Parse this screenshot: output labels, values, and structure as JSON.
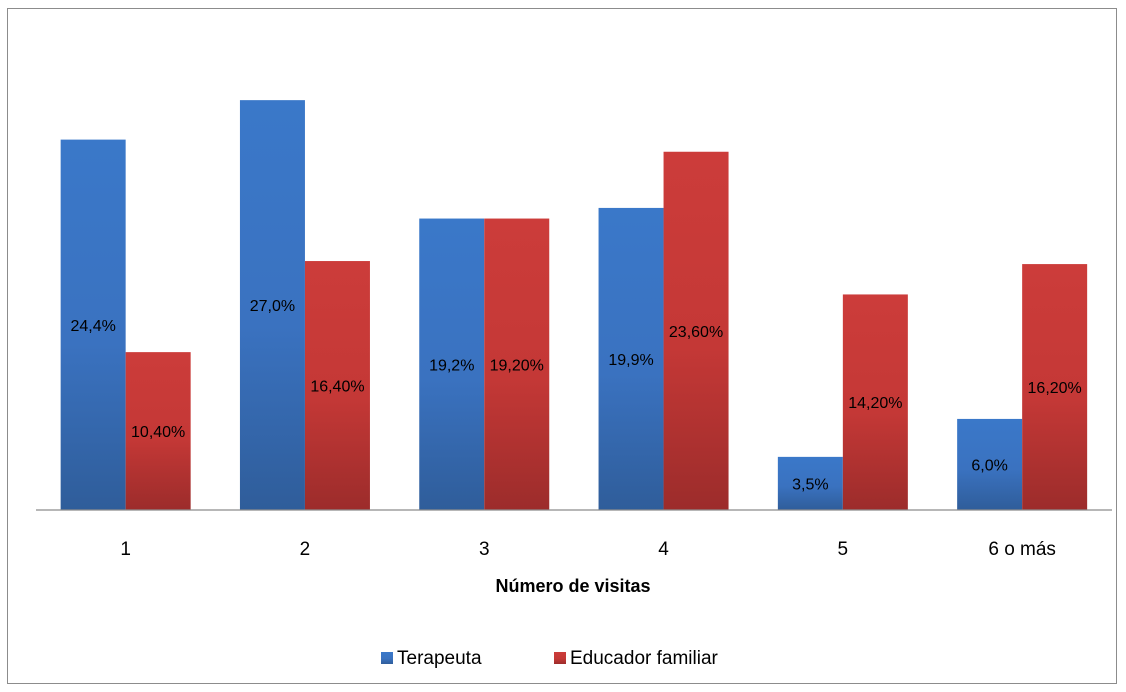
{
  "chart_data": {
    "type": "bar",
    "categories": [
      "1",
      "2",
      "3",
      "4",
      "5",
      "6 o más"
    ],
    "series": [
      {
        "name": "Terapeuta",
        "color": "#3a76c7",
        "values": [
          24.4,
          27.0,
          19.2,
          19.9,
          3.5,
          6.0
        ],
        "labels": [
          "24,4%",
          "27,0%",
          "19,2%",
          "19,9%",
          "3,5%",
          "6,0%"
        ]
      },
      {
        "name": "Educador familiar",
        "color": "#c83a38",
        "values": [
          10.4,
          16.4,
          19.2,
          23.6,
          14.2,
          16.2
        ],
        "labels": [
          "10,40%",
          "16,40%",
          "19,20%",
          "23,60%",
          "14,20%",
          "16,20%"
        ]
      }
    ],
    "title": "",
    "xlabel": "Número de visitas",
    "ylabel": "",
    "ylim": [
      0,
      30
    ],
    "grid": false,
    "legend_position": "bottom"
  }
}
